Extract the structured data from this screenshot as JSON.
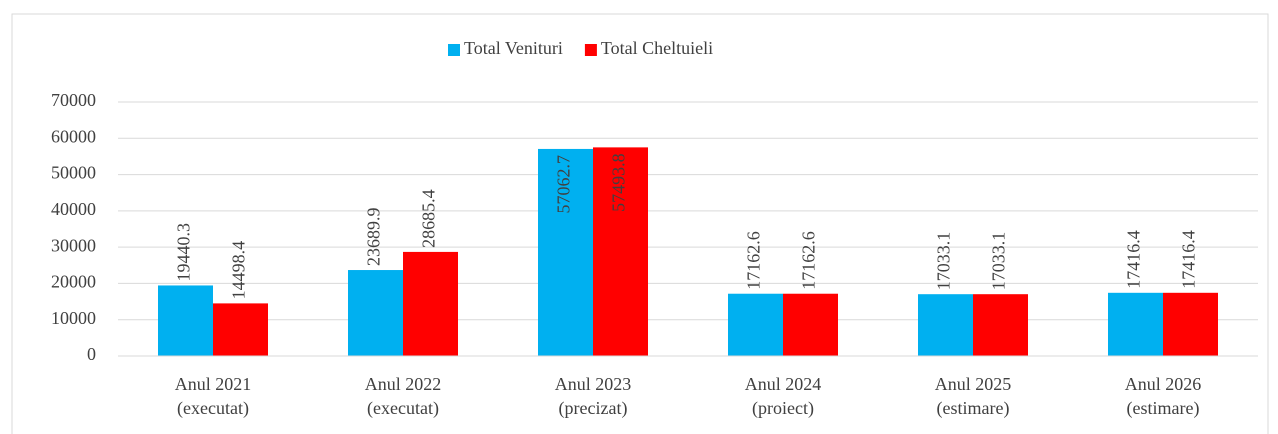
{
  "chart_data": {
    "type": "bar",
    "categories": [
      [
        "Anul 2021",
        "(executat)"
      ],
      [
        "Anul 2022",
        "(executat)"
      ],
      [
        "Anul 2023",
        "(precizat)"
      ],
      [
        "Anul 2024",
        "(proiect)"
      ],
      [
        "Anul 2025",
        "(estimare)"
      ],
      [
        "Anul 2026",
        "(estimare)"
      ]
    ],
    "series": [
      {
        "name": "Total Venituri",
        "color": "#00b0f0",
        "values": [
          19440.3,
          23689.9,
          57062.7,
          17162.6,
          17033.1,
          17416.4
        ]
      },
      {
        "name": "Total Cheltuieli",
        "color": "#ff0000",
        "values": [
          14498.4,
          28685.4,
          57493.8,
          17162.6,
          17033.1,
          17416.4
        ]
      }
    ],
    "ylim": [
      0,
      70000
    ],
    "yticks": [
      0,
      10000,
      20000,
      30000,
      40000,
      50000,
      60000,
      70000
    ],
    "grid": true,
    "legend": "top"
  }
}
